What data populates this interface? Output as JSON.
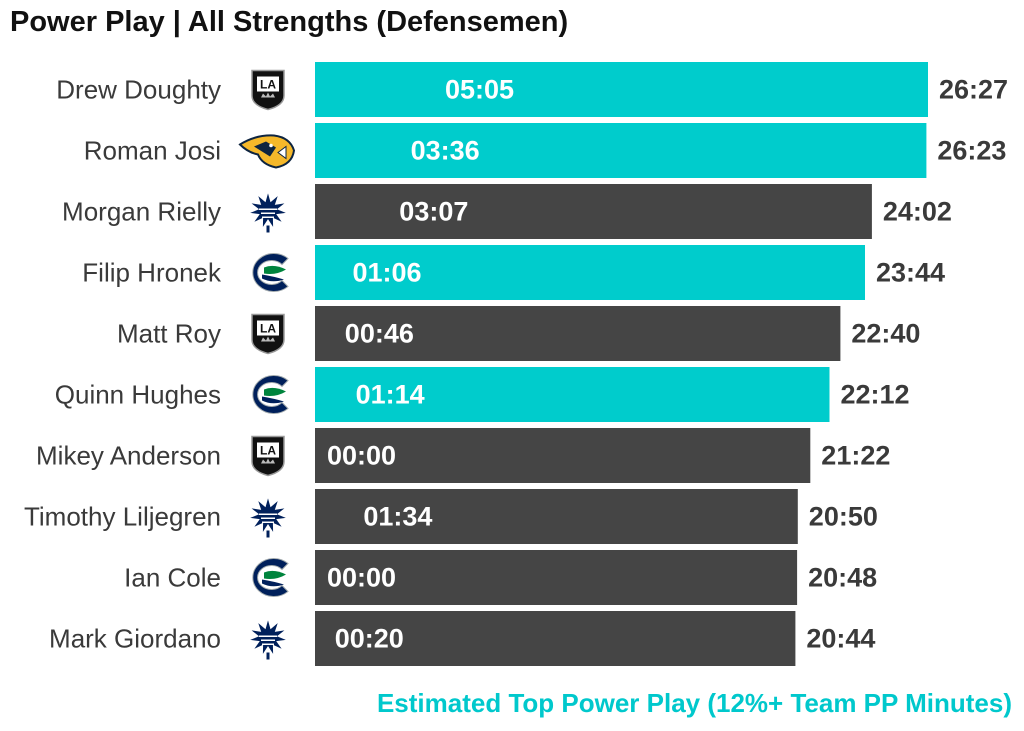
{
  "title": "Power Play | All Strengths (Defensemen)",
  "caption": "Estimated Top Power Play (12%+ Team PP Minutes)",
  "colors": {
    "highlight": "#00cccc",
    "default": "#454545",
    "caption": "#00c8cc"
  },
  "chart_data": {
    "type": "bar",
    "orientation": "horizontal",
    "xlim": [
      0,
      26.45
    ],
    "rows": [
      {
        "player": "Drew Doughty",
        "team_icon": "la-kings-logo",
        "toi": "26:27",
        "toi_min": 26.45,
        "pp": "05:05",
        "highlight": true
      },
      {
        "player": "Roman Josi",
        "team_icon": "nashville-predators-logo",
        "toi": "26:23",
        "toi_min": 26.38,
        "pp": "03:36",
        "highlight": true
      },
      {
        "player": "Morgan Rielly",
        "team_icon": "toronto-maple-leafs-logo",
        "toi": "24:02",
        "toi_min": 24.03,
        "pp": "03:07",
        "highlight": false
      },
      {
        "player": "Filip Hronek",
        "team_icon": "vancouver-canucks-logo",
        "toi": "23:44",
        "toi_min": 23.73,
        "pp": "01:06",
        "highlight": true
      },
      {
        "player": "Matt Roy",
        "team_icon": "la-kings-logo",
        "toi": "22:40",
        "toi_min": 22.67,
        "pp": "00:46",
        "highlight": false
      },
      {
        "player": "Quinn Hughes",
        "team_icon": "vancouver-canucks-logo",
        "toi": "22:12",
        "toi_min": 22.2,
        "pp": "01:14",
        "highlight": true
      },
      {
        "player": "Mikey Anderson",
        "team_icon": "la-kings-logo",
        "toi": "21:22",
        "toi_min": 21.37,
        "pp": "00:00",
        "highlight": false
      },
      {
        "player": "Timothy Liljegren",
        "team_icon": "toronto-maple-leafs-logo",
        "toi": "20:50",
        "toi_min": 20.83,
        "pp": "01:34",
        "highlight": false
      },
      {
        "player": "Ian Cole",
        "team_icon": "vancouver-canucks-logo",
        "toi": "20:48",
        "toi_min": 20.8,
        "pp": "00:00",
        "highlight": false
      },
      {
        "player": "Mark Giordano",
        "team_icon": "toronto-maple-leafs-logo",
        "toi": "20:44",
        "toi_min": 20.73,
        "pp": "00:20",
        "highlight": false
      }
    ]
  }
}
